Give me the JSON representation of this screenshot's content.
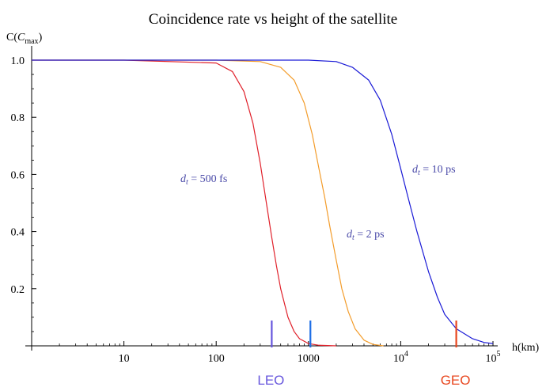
{
  "chart_data": {
    "type": "line",
    "title": "Coincidence rate vs height of the satellite",
    "xlabel": "h(km)",
    "ylabel": {
      "base": "C(",
      "var": "C",
      "sub": "max",
      "close": ")"
    },
    "x_scale": "log",
    "xlim": [
      1,
      100000
    ],
    "ylim": [
      0,
      1
    ],
    "grid": false,
    "x_ticks": [
      {
        "value": 10,
        "label": "10"
      },
      {
        "value": 100,
        "label": "100"
      },
      {
        "value": 1000,
        "label": "1000"
      },
      {
        "value": 10000,
        "label": "10",
        "exp": "4"
      },
      {
        "value": 100000,
        "label": "10",
        "exp": "5"
      }
    ],
    "y_ticks": [
      {
        "value": 0.2,
        "label": "0.2"
      },
      {
        "value": 0.4,
        "label": "0.4"
      },
      {
        "value": 0.6,
        "label": "0.6"
      },
      {
        "value": 0.8,
        "label": "0.8"
      },
      {
        "value": 1.0,
        "label": "1.0"
      }
    ],
    "series": [
      {
        "name": "d_t = 500 fs",
        "label": {
          "var": "d",
          "sub": "t",
          "text": " = 500 fs"
        },
        "color": "#e0202a",
        "x": [
          1,
          10,
          100,
          150,
          200,
          250,
          300,
          350,
          400,
          450,
          500,
          600,
          700,
          800,
          1000,
          1300,
          2000
        ],
        "y": [
          1.0,
          1.0,
          0.99,
          0.96,
          0.89,
          0.78,
          0.64,
          0.5,
          0.38,
          0.28,
          0.2,
          0.1,
          0.05,
          0.025,
          0.008,
          0.002,
          0.0
        ]
      },
      {
        "name": "d_t = 2 ps",
        "label": {
          "var": "d",
          "sub": "t",
          "text": " = 2 ps"
        },
        "color": "#f39c2a",
        "x": [
          1,
          10,
          100,
          300,
          500,
          700,
          900,
          1100,
          1300,
          1500,
          1700,
          2000,
          2300,
          2700,
          3200,
          4000,
          5000,
          6500
        ],
        "y": [
          1.0,
          1.0,
          1.0,
          0.995,
          0.975,
          0.93,
          0.85,
          0.74,
          0.62,
          0.52,
          0.42,
          0.3,
          0.2,
          0.12,
          0.06,
          0.02,
          0.005,
          0.0
        ]
      },
      {
        "name": "d_t = 10 ps",
        "label": {
          "var": "d",
          "sub": "t",
          "text": " = 10 ps"
        },
        "color": "#1a1ad6",
        "x": [
          1,
          100,
          1000,
          2000,
          3000,
          4500,
          6000,
          8000,
          10000,
          12000,
          15000,
          20000,
          25000,
          30000,
          40000,
          60000,
          80000,
          100000
        ],
        "y": [
          1.0,
          1.0,
          1.0,
          0.995,
          0.975,
          0.93,
          0.86,
          0.74,
          0.62,
          0.52,
          0.4,
          0.26,
          0.17,
          0.11,
          0.06,
          0.025,
          0.012,
          0.008
        ]
      }
    ],
    "markers": [
      {
        "name": "LEO",
        "label": "LEO",
        "color": "#6655dd",
        "x": 400,
        "text_x": 400
      },
      {
        "name": "LEO-upper",
        "label": "",
        "color": "#1e6ee6",
        "x": 1050
      },
      {
        "name": "GEO",
        "label": "GEO",
        "color": "#e8461e",
        "x": 40000,
        "text_x": 40000
      }
    ]
  }
}
